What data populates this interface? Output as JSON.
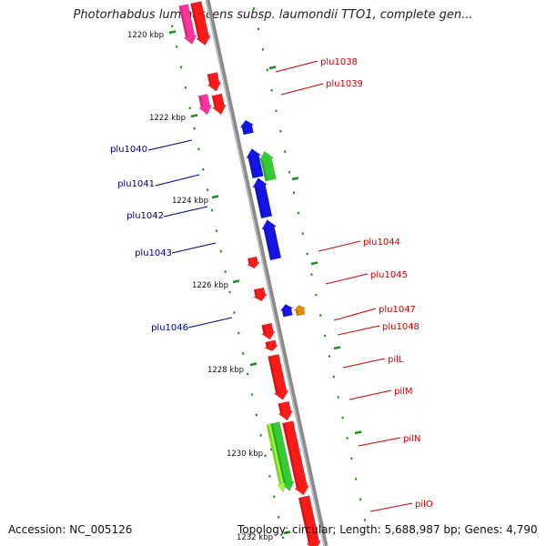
{
  "title": "Photorhabdus luminescens subsp. laumondii TTO1, complete gen...",
  "footer": {
    "accession": "Accession: NC_005126",
    "topology": "Topology: circular; Length: 5,688,987 bp; Genes: 4,790"
  },
  "colors": {
    "backbone": "#8a8a8a",
    "tick": "#1f8a1f",
    "forward_label": "#cc0000",
    "reverse_label": "#00008b",
    "red": "#ff1a1a",
    "pink": "#ff3399",
    "blue": "#1414e6",
    "green": "#33cc33",
    "lime": "#99ff33",
    "orange": "#e68a00"
  },
  "kbp_labels": [
    "1220 kbp",
    "1222 kbp",
    "1224 kbp",
    "1226 kbp",
    "1228 kbp",
    "1230 kbp",
    "1232 kbp"
  ],
  "gene_labels": [
    {
      "text": "plu1038",
      "strand": "forward"
    },
    {
      "text": "plu1039",
      "strand": "forward"
    },
    {
      "text": "plu1040",
      "strand": "reverse"
    },
    {
      "text": "plu1041",
      "strand": "reverse"
    },
    {
      "text": "plu1042",
      "strand": "reverse"
    },
    {
      "text": "plu1043",
      "strand": "reverse"
    },
    {
      "text": "plu1044",
      "strand": "forward"
    },
    {
      "text": "plu1045",
      "strand": "forward"
    },
    {
      "text": "plu1046",
      "strand": "reverse"
    },
    {
      "text": "plu1047",
      "strand": "forward"
    },
    {
      "text": "plu1048",
      "strand": "forward"
    },
    {
      "text": "pilL",
      "strand": "forward"
    },
    {
      "text": "pilM",
      "strand": "forward"
    },
    {
      "text": "pilN",
      "strand": "forward"
    },
    {
      "text": "pilO",
      "strand": "forward"
    }
  ]
}
